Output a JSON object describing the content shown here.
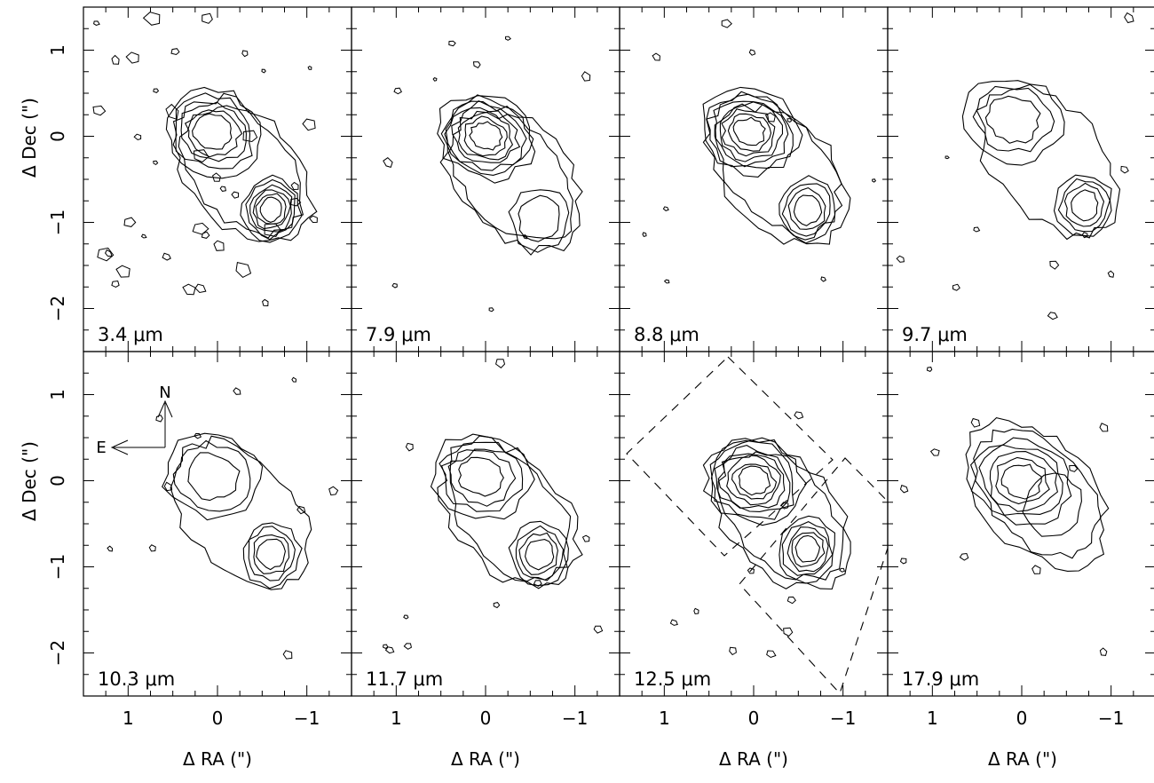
{
  "figure": {
    "x_axis_label": "Δ RA (\")",
    "y_axis_label": "Δ Dec (\")",
    "x_ticks": [
      "1",
      "0",
      "−1"
    ],
    "x_tick_values": [
      1,
      0,
      -1
    ],
    "y_ticks": [
      "1",
      "0",
      "−1",
      "−2"
    ],
    "y_tick_values": [
      1,
      0,
      -1,
      -2
    ],
    "x_range": [
      1.5,
      -1.5
    ],
    "y_range": [
      -2.5,
      1.5
    ],
    "compass": {
      "north": "N",
      "east": "E"
    },
    "panels": [
      {
        "label": "3.4 μm",
        "source_a": {
          "ra": 0.05,
          "dec": 0.05,
          "levels": 5
        },
        "source_b": {
          "ra": -0.6,
          "dec": -0.85,
          "levels": 6
        }
      },
      {
        "label": "7.9 μm",
        "source_a": {
          "ra": 0.0,
          "dec": 0.0,
          "levels": 7
        },
        "source_b": {
          "ra": -0.6,
          "dec": -0.95,
          "levels": 2
        }
      },
      {
        "label": "8.8 μm",
        "source_a": {
          "ra": 0.05,
          "dec": 0.05,
          "levels": 7
        },
        "source_b": {
          "ra": -0.6,
          "dec": -0.85,
          "levels": 4
        }
      },
      {
        "label": "9.7 μm",
        "source_a": {
          "ra": 0.1,
          "dec": 0.2,
          "levels": 3
        },
        "source_b": {
          "ra": -0.7,
          "dec": -0.8,
          "levels": 4
        }
      },
      {
        "label": "10.3 μm",
        "source_a": {
          "ra": 0.05,
          "dec": 0.05,
          "levels": 3
        },
        "source_b": {
          "ra": -0.6,
          "dec": -0.85,
          "levels": 4
        }
      },
      {
        "label": "11.7 μm",
        "source_a": {
          "ra": 0.05,
          "dec": 0.05,
          "levels": 4
        },
        "source_b": {
          "ra": -0.6,
          "dec": -0.85,
          "levels": 4
        }
      },
      {
        "label": "12.5 μm",
        "source_a": {
          "ra": 0.0,
          "dec": 0.0,
          "levels": 7
        },
        "source_b": {
          "ra": -0.6,
          "dec": -0.8,
          "levels": 5
        }
      },
      {
        "label": "17.9 μm",
        "source_a": {
          "ra": 0.0,
          "dec": 0.0,
          "levels": 5
        },
        "source_b": {
          "ra": -0.35,
          "dec": -0.3,
          "levels": 1
        }
      }
    ],
    "slit_panel_index": 6,
    "colors": {
      "ink": "#000000",
      "background": "#ffffff"
    }
  }
}
